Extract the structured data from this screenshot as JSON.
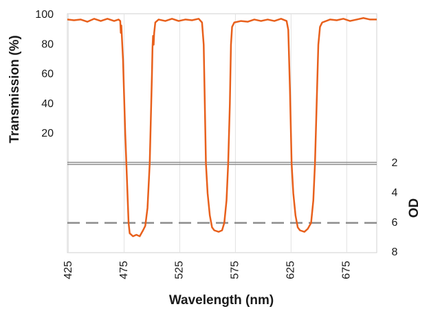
{
  "chart_data": {
    "type": "line",
    "xlabel": "Wavelength (nm)",
    "ylabel": "Transmission (%)",
    "y2label": "OD",
    "x": [
      424,
      430,
      436,
      442,
      448,
      454,
      460,
      466,
      470,
      471.5,
      472,
      472.5,
      473,
      474,
      475,
      476,
      477,
      478,
      479,
      480,
      483,
      486,
      489,
      492,
      494,
      496,
      497,
      498,
      499,
      500,
      500.5,
      501,
      501.5,
      502,
      503,
      506,
      512,
      518,
      524,
      530,
      536,
      542,
      545,
      546.5,
      547.5,
      548.5,
      550,
      552,
      554,
      556,
      560,
      563,
      565,
      567,
      568.5,
      570,
      571,
      572,
      574,
      580,
      586,
      592,
      598,
      604,
      610,
      616,
      621,
      622.5,
      624,
      625.5,
      627,
      629,
      631,
      633,
      637,
      640,
      643,
      645,
      646.5,
      648,
      649.5,
      651,
      653,
      660,
      666,
      672,
      678,
      684,
      690,
      696,
      702
    ],
    "series": [
      {
        "color": "#e8601c",
        "axis": "y",
        "values": [
          97,
          96.5,
          97,
          95.5,
          97.5,
          96,
          97.5,
          96,
          97,
          96,
          88,
          93,
          85,
          70,
          45,
          20,
          0,
          null,
          null,
          null,
          null,
          null,
          null,
          null,
          null,
          null,
          null,
          0,
          30,
          60,
          78,
          86,
          80,
          88,
          95,
          97,
          96,
          97.5,
          96,
          97,
          96.5,
          97.5,
          95,
          80,
          40,
          0,
          null,
          null,
          null,
          null,
          null,
          null,
          null,
          null,
          0,
          40,
          80,
          92,
          95,
          96,
          95.5,
          97,
          96,
          97,
          96,
          97.5,
          96,
          90,
          50,
          0,
          null,
          null,
          null,
          null,
          null,
          null,
          null,
          null,
          0,
          40,
          80,
          92,
          95,
          97,
          96.5,
          97.5,
          96,
          97,
          98,
          97,
          97
        ]
      },
      {
        "color": "#e8601c",
        "axis": "y2",
        "values": [
          null,
          null,
          null,
          null,
          null,
          null,
          null,
          null,
          null,
          null,
          null,
          null,
          null,
          null,
          null,
          null,
          2,
          4,
          6,
          6.7,
          6.9,
          6.8,
          6.9,
          6.5,
          6.2,
          5,
          3.5,
          2,
          null,
          null,
          null,
          null,
          null,
          null,
          null,
          null,
          null,
          null,
          null,
          null,
          null,
          null,
          null,
          null,
          null,
          2,
          4,
          5.5,
          6.3,
          6.5,
          6.6,
          6.5,
          6,
          4.5,
          2,
          null,
          null,
          null,
          null,
          null,
          null,
          null,
          null,
          null,
          null,
          null,
          null,
          null,
          null,
          2,
          4,
          5.5,
          6.3,
          6.5,
          6.6,
          6.4,
          6,
          4.5,
          2,
          null,
          null,
          null,
          null,
          null,
          null,
          null,
          null,
          null,
          null,
          null,
          null
        ]
      }
    ],
    "xlim": [
      424,
      702
    ],
    "xticks": [
      425,
      475,
      525,
      575,
      625,
      675
    ],
    "ylim": [
      -60.2,
      100.9
    ],
    "yticks": [
      20,
      40,
      60,
      80,
      100
    ],
    "y2lim": [
      8,
      -8.06
    ],
    "y2ticks": [
      2,
      4,
      6,
      8
    ],
    "hlines": [
      {
        "value": 2,
        "axis": "y2",
        "style": "double",
        "color": "#8c8c8c"
      },
      {
        "value": 6,
        "axis": "y2",
        "style": "dashed",
        "color": "#8c8c8c"
      }
    ],
    "grid": "x"
  }
}
